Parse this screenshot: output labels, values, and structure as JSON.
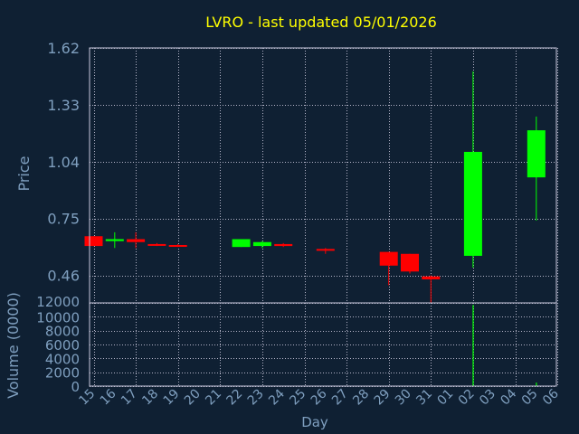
{
  "chart_data": [
    {
      "type": "candlestick",
      "title": "LVRO - last updated 05/01/2026",
      "ylabel": "Price",
      "xlabel": "Day",
      "ylim": [
        0.32,
        1.62
      ],
      "y_ticks": [
        "0.46",
        "0.75",
        "1.04",
        "1.33",
        "1.62"
      ],
      "y_tick_values": [
        0.46,
        0.75,
        1.04,
        1.33,
        1.62
      ],
      "grid": true,
      "x_labels": [
        "15",
        "16",
        "17",
        "18",
        "19",
        "20",
        "21",
        "22",
        "23",
        "24",
        "25",
        "26",
        "27",
        "28",
        "29",
        "30",
        "31",
        "01",
        "02",
        "03",
        "04",
        "05",
        "06"
      ],
      "candles": [
        {
          "x": "15",
          "open": 0.66,
          "close": 0.61,
          "high": 0.66,
          "low": 0.61
        },
        {
          "x": "16",
          "open": 0.635,
          "close": 0.645,
          "high": 0.68,
          "low": 0.6
        },
        {
          "x": "17",
          "open": 0.645,
          "close": 0.63,
          "high": 0.68,
          "low": 0.6
        },
        {
          "x": "18",
          "open": 0.62,
          "close": 0.615,
          "high": 0.625,
          "low": 0.61
        },
        {
          "x": "19",
          "open": 0.615,
          "close": 0.61,
          "high": 0.62,
          "low": 0.605
        },
        {
          "x": "22",
          "open": 0.605,
          "close": 0.645,
          "high": 0.645,
          "low": 0.605
        },
        {
          "x": "23",
          "open": 0.61,
          "close": 0.63,
          "high": 0.635,
          "low": 0.6
        },
        {
          "x": "24",
          "open": 0.62,
          "close": 0.61,
          "high": 0.625,
          "low": 0.605
        },
        {
          "x": "26",
          "open": 0.595,
          "close": 0.59,
          "high": 0.6,
          "low": 0.57
        },
        {
          "x": "29",
          "open": 0.58,
          "close": 0.51,
          "high": 0.58,
          "low": 0.41
        },
        {
          "x": "30",
          "open": 0.57,
          "close": 0.48,
          "high": 0.57,
          "low": 0.47
        },
        {
          "x": "31",
          "open": 0.455,
          "close": 0.44,
          "high": 0.46,
          "low": 0.32
        },
        {
          "x": "02",
          "open": 0.56,
          "close": 1.09,
          "high": 1.5,
          "low": 0.5
        },
        {
          "x": "05",
          "open": 0.96,
          "close": 1.2,
          "high": 1.27,
          "low": 0.74
        }
      ],
      "colors": {
        "up": "#00ff00",
        "down": "#ff0000",
        "title": "#ffff00",
        "label": "#7f9fbf",
        "grid": "#b4b4c8",
        "background": "#0f2033"
      }
    },
    {
      "type": "bar",
      "ylabel": "Volume (0000)",
      "ylim": [
        0,
        12000
      ],
      "y_ticks": [
        "0",
        "2000",
        "4000",
        "6000",
        "8000",
        "10000",
        "12000"
      ],
      "y_tick_values": [
        0,
        2000,
        4000,
        6000,
        8000,
        10000,
        12000
      ],
      "grid": true,
      "volumes": [
        {
          "x": "02",
          "value": 11700
        },
        {
          "x": "05",
          "value": 500
        }
      ]
    }
  ]
}
